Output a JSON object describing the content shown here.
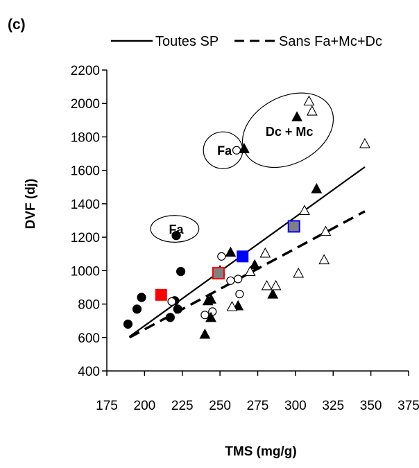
{
  "chart_data": {
    "type": "scatter",
    "panel_label": "(c)",
    "xlabel": "TMS (mg/g)",
    "ylabel": "DVF (dj)",
    "xlim": [
      175,
      375
    ],
    "ylim": [
      400,
      2200
    ],
    "x_ticks": [
      175,
      200,
      225,
      250,
      275,
      300,
      325,
      350,
      375
    ],
    "y_ticks": [
      400,
      600,
      800,
      1000,
      1200,
      1400,
      1600,
      1800,
      2000,
      2200
    ],
    "x_tick_labels": [
      "175",
      "200",
      "225",
      "250",
      "275",
      "300",
      "325",
      "350",
      "375"
    ],
    "y_tick_labels": [
      "400",
      "600",
      "800",
      "1000",
      "1200",
      "1400",
      "1600",
      "1800",
      "2000",
      "2200"
    ],
    "grid": false,
    "legend": {
      "placement": "top",
      "entries": [
        {
          "label": "Toutes SP",
          "style": "solid"
        },
        {
          "label": "Sans Fa+Mc+Dc",
          "style": "dashed"
        }
      ]
    },
    "trend_lines": [
      {
        "label": "Toutes SP",
        "style": "solid",
        "x": [
          190,
          346
        ],
        "y": [
          605,
          1620
        ]
      },
      {
        "label": "Sans Fa+Mc+Dc",
        "style": "dashed",
        "x": [
          190,
          346
        ],
        "y": [
          600,
          1355
        ]
      }
    ],
    "series": [
      {
        "marker": "filled-circle",
        "color": "#000000",
        "points": [
          {
            "x": 189,
            "y": 680
          },
          {
            "x": 195,
            "y": 770
          },
          {
            "x": 198,
            "y": 840
          },
          {
            "x": 217,
            "y": 720
          },
          {
            "x": 220,
            "y": 820
          },
          {
            "x": 222,
            "y": 770
          },
          {
            "x": 224,
            "y": 995
          },
          {
            "x": 221,
            "y": 1210
          }
        ]
      },
      {
        "marker": "open-circle",
        "color": "#000000",
        "points": [
          {
            "x": 218,
            "y": 815
          },
          {
            "x": 240,
            "y": 735
          },
          {
            "x": 245,
            "y": 755
          },
          {
            "x": 251,
            "y": 1085
          },
          {
            "x": 257,
            "y": 940
          },
          {
            "x": 262,
            "y": 950
          },
          {
            "x": 263,
            "y": 860
          },
          {
            "x": 261,
            "y": 1720
          }
        ]
      },
      {
        "marker": "filled-triangle",
        "color": "#000000",
        "points": [
          {
            "x": 240,
            "y": 620
          },
          {
            "x": 242,
            "y": 820
          },
          {
            "x": 244,
            "y": 830
          },
          {
            "x": 244,
            "y": 720
          },
          {
            "x": 250,
            "y": 1000
          },
          {
            "x": 257,
            "y": 1110
          },
          {
            "x": 262,
            "y": 790
          },
          {
            "x": 273,
            "y": 1035
          },
          {
            "x": 285,
            "y": 860
          },
          {
            "x": 314,
            "y": 1490
          },
          {
            "x": 266,
            "y": 1730
          },
          {
            "x": 301,
            "y": 1920
          }
        ]
      },
      {
        "marker": "open-triangle",
        "color": "#000000",
        "points": [
          {
            "x": 258,
            "y": 785
          },
          {
            "x": 270,
            "y": 995
          },
          {
            "x": 280,
            "y": 1105
          },
          {
            "x": 281,
            "y": 910
          },
          {
            "x": 287,
            "y": 910
          },
          {
            "x": 302,
            "y": 985
          },
          {
            "x": 306,
            "y": 1360
          },
          {
            "x": 319,
            "y": 1065
          },
          {
            "x": 320,
            "y": 1235
          },
          {
            "x": 346,
            "y": 1760
          },
          {
            "x": 309,
            "y": 2015
          },
          {
            "x": 311,
            "y": 1955
          }
        ]
      },
      {
        "marker": "filled-square",
        "color": "#ff0000",
        "points": [
          {
            "x": 211,
            "y": 855
          }
        ]
      },
      {
        "marker": "filled-square",
        "color": "#808080",
        "edge_color": "#ff0000",
        "points": [
          {
            "x": 249,
            "y": 985
          }
        ]
      },
      {
        "marker": "filled-square",
        "color": "#0000ff",
        "points": [
          {
            "x": 265,
            "y": 1085
          }
        ]
      },
      {
        "marker": "filled-square",
        "color": "#808080",
        "edge_color": "#0000ff",
        "points": [
          {
            "x": 299,
            "y": 1265
          }
        ]
      }
    ],
    "annotations": [
      {
        "text": "Fa",
        "x": 221,
        "y": 1250,
        "shape": "ellipse",
        "ellipse": {
          "cx": 220,
          "cy": 1250,
          "rx": 16,
          "ry": 80
        }
      },
      {
        "text": "Fa",
        "x": 253,
        "y": 1720,
        "shape": "ellipse",
        "ellipse": {
          "cx": 252,
          "cy": 1720,
          "rx": 13,
          "ry": 110
        }
      },
      {
        "text": "Dc + Mc",
        "x": 296,
        "y": 1835,
        "shape": "ellipse",
        "ellipse": {
          "cx": 295,
          "cy": 1840,
          "rx": 32,
          "ry": 200,
          "rotate": -28
        }
      }
    ]
  }
}
